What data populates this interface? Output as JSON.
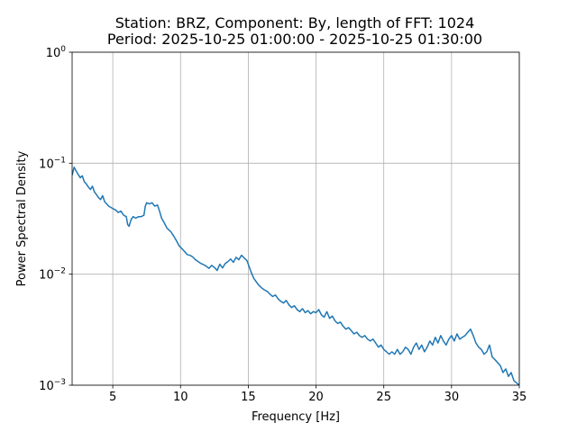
{
  "chart_data": {
    "type": "line",
    "title_line1": "Station: BRZ, Component: By, length of FFT: 1024",
    "title_line2": "Period: 2025-10-25 01:00:00 - 2025-10-25 01:30:00",
    "xlabel": "Frequency [Hz]",
    "ylabel": "Power Spectral Density",
    "y_scale": "log",
    "xlim": [
      2,
      35
    ],
    "ylim": [
      0.001,
      1
    ],
    "grid": true,
    "x_ticks": [
      {
        "value": 5,
        "label": "5"
      },
      {
        "value": 10,
        "label": "10"
      },
      {
        "value": 15,
        "label": "15"
      },
      {
        "value": 20,
        "label": "20"
      },
      {
        "value": 25,
        "label": "25"
      },
      {
        "value": 30,
        "label": "30"
      },
      {
        "value": 35,
        "label": "35"
      }
    ],
    "y_ticks": [
      {
        "value": 0.001,
        "base": "10",
        "exp": "−3"
      },
      {
        "value": 0.01,
        "base": "10",
        "exp": "−2"
      },
      {
        "value": 0.1,
        "base": "10",
        "exp": "−1"
      },
      {
        "value": 1,
        "base": "10",
        "exp": "0"
      }
    ],
    "series": [
      {
        "color": "#1f77b4",
        "points": [
          [
            2.0,
            0.078
          ],
          [
            2.15,
            0.092
          ],
          [
            2.3,
            0.085
          ],
          [
            2.45,
            0.079
          ],
          [
            2.6,
            0.074
          ],
          [
            2.75,
            0.077
          ],
          [
            2.9,
            0.068
          ],
          [
            3.05,
            0.065
          ],
          [
            3.2,
            0.061
          ],
          [
            3.35,
            0.058
          ],
          [
            3.5,
            0.062
          ],
          [
            3.65,
            0.055
          ],
          [
            3.8,
            0.052
          ],
          [
            3.95,
            0.049
          ],
          [
            4.1,
            0.047
          ],
          [
            4.25,
            0.051
          ],
          [
            4.4,
            0.045
          ],
          [
            4.55,
            0.043
          ],
          [
            4.7,
            0.041
          ],
          [
            4.85,
            0.04
          ],
          [
            5.0,
            0.039
          ],
          [
            5.2,
            0.038
          ],
          [
            5.4,
            0.036
          ],
          [
            5.6,
            0.037
          ],
          [
            5.8,
            0.034
          ],
          [
            6.0,
            0.033
          ],
          [
            6.1,
            0.028
          ],
          [
            6.2,
            0.027
          ],
          [
            6.35,
            0.031
          ],
          [
            6.5,
            0.033
          ],
          [
            6.7,
            0.032
          ],
          [
            6.9,
            0.033
          ],
          [
            7.1,
            0.033
          ],
          [
            7.3,
            0.034
          ],
          [
            7.4,
            0.041
          ],
          [
            7.5,
            0.044
          ],
          [
            7.7,
            0.043
          ],
          [
            7.9,
            0.044
          ],
          [
            8.1,
            0.041
          ],
          [
            8.3,
            0.042
          ],
          [
            8.45,
            0.037
          ],
          [
            8.6,
            0.032
          ],
          [
            8.8,
            0.029
          ],
          [
            9.0,
            0.026
          ],
          [
            9.15,
            0.025
          ],
          [
            9.3,
            0.024
          ],
          [
            9.5,
            0.022
          ],
          [
            9.7,
            0.02
          ],
          [
            9.9,
            0.018
          ],
          [
            10.1,
            0.017
          ],
          [
            10.3,
            0.016
          ],
          [
            10.5,
            0.015
          ],
          [
            10.7,
            0.0148
          ],
          [
            10.9,
            0.0143
          ],
          [
            11.1,
            0.0135
          ],
          [
            11.3,
            0.013
          ],
          [
            11.5,
            0.0125
          ],
          [
            11.7,
            0.0122
          ],
          [
            11.9,
            0.0118
          ],
          [
            12.1,
            0.0113
          ],
          [
            12.3,
            0.012
          ],
          [
            12.5,
            0.0115
          ],
          [
            12.7,
            0.0108
          ],
          [
            12.9,
            0.0123
          ],
          [
            13.1,
            0.0114
          ],
          [
            13.3,
            0.0125
          ],
          [
            13.5,
            0.013
          ],
          [
            13.7,
            0.0137
          ],
          [
            13.9,
            0.0128
          ],
          [
            14.1,
            0.0142
          ],
          [
            14.3,
            0.0135
          ],
          [
            14.5,
            0.0148
          ],
          [
            14.7,
            0.014
          ],
          [
            14.9,
            0.0133
          ],
          [
            15.05,
            0.0118
          ],
          [
            15.2,
            0.0105
          ],
          [
            15.4,
            0.0092
          ],
          [
            15.6,
            0.0085
          ],
          [
            15.8,
            0.0079
          ],
          [
            16.0,
            0.0075
          ],
          [
            16.2,
            0.0072
          ],
          [
            16.4,
            0.007
          ],
          [
            16.6,
            0.0066
          ],
          [
            16.8,
            0.0063
          ],
          [
            17.0,
            0.0065
          ],
          [
            17.2,
            0.006
          ],
          [
            17.4,
            0.0057
          ],
          [
            17.6,
            0.0055
          ],
          [
            17.8,
            0.0058
          ],
          [
            18.0,
            0.0053
          ],
          [
            18.2,
            0.005
          ],
          [
            18.4,
            0.0052
          ],
          [
            18.6,
            0.0048
          ],
          [
            18.8,
            0.0046
          ],
          [
            19.0,
            0.0049
          ],
          [
            19.2,
            0.0045
          ],
          [
            19.4,
            0.0047
          ],
          [
            19.6,
            0.0044
          ],
          [
            19.8,
            0.0046
          ],
          [
            20.0,
            0.0045
          ],
          [
            20.2,
            0.0048
          ],
          [
            20.4,
            0.0043
          ],
          [
            20.6,
            0.0041
          ],
          [
            20.8,
            0.0046
          ],
          [
            21.0,
            0.004
          ],
          [
            21.2,
            0.0042
          ],
          [
            21.4,
            0.0038
          ],
          [
            21.6,
            0.0036
          ],
          [
            21.8,
            0.0037
          ],
          [
            22.0,
            0.0034
          ],
          [
            22.2,
            0.0032
          ],
          [
            22.4,
            0.0033
          ],
          [
            22.6,
            0.0031
          ],
          [
            22.8,
            0.0029
          ],
          [
            23.0,
            0.003
          ],
          [
            23.2,
            0.0028
          ],
          [
            23.4,
            0.0027
          ],
          [
            23.6,
            0.0028
          ],
          [
            23.8,
            0.0026
          ],
          [
            24.0,
            0.0025
          ],
          [
            24.2,
            0.0026
          ],
          [
            24.4,
            0.0024
          ],
          [
            24.6,
            0.0022
          ],
          [
            24.8,
            0.0023
          ],
          [
            25.0,
            0.0021
          ],
          [
            25.2,
            0.002
          ],
          [
            25.4,
            0.0019
          ],
          [
            25.6,
            0.002
          ],
          [
            25.8,
            0.0019
          ],
          [
            26.0,
            0.0021
          ],
          [
            26.2,
            0.0019
          ],
          [
            26.4,
            0.002
          ],
          [
            26.6,
            0.0022
          ],
          [
            26.8,
            0.0021
          ],
          [
            27.0,
            0.0019
          ],
          [
            27.2,
            0.0022
          ],
          [
            27.4,
            0.0024
          ],
          [
            27.6,
            0.0021
          ],
          [
            27.8,
            0.0023
          ],
          [
            28.0,
            0.002
          ],
          [
            28.2,
            0.0022
          ],
          [
            28.4,
            0.0025
          ],
          [
            28.6,
            0.0023
          ],
          [
            28.8,
            0.0027
          ],
          [
            29.0,
            0.0024
          ],
          [
            29.2,
            0.0028
          ],
          [
            29.4,
            0.0025
          ],
          [
            29.6,
            0.0023
          ],
          [
            29.8,
            0.0026
          ],
          [
            30.0,
            0.0028
          ],
          [
            30.2,
            0.0025
          ],
          [
            30.4,
            0.0029
          ],
          [
            30.6,
            0.0026
          ],
          [
            30.8,
            0.0027
          ],
          [
            31.0,
            0.0028
          ],
          [
            31.2,
            0.003
          ],
          [
            31.4,
            0.0032
          ],
          [
            31.6,
            0.0028
          ],
          [
            31.8,
            0.0024
          ],
          [
            32.0,
            0.0022
          ],
          [
            32.2,
            0.0021
          ],
          [
            32.4,
            0.0019
          ],
          [
            32.6,
            0.002
          ],
          [
            32.8,
            0.0023
          ],
          [
            33.0,
            0.0018
          ],
          [
            33.2,
            0.0017
          ],
          [
            33.4,
            0.0016
          ],
          [
            33.6,
            0.0015
          ],
          [
            33.8,
            0.0013
          ],
          [
            34.0,
            0.0014
          ],
          [
            34.2,
            0.0012
          ],
          [
            34.4,
            0.0013
          ],
          [
            34.6,
            0.0011
          ],
          [
            34.8,
            0.00105
          ],
          [
            35.0,
            0.001
          ]
        ]
      }
    ]
  }
}
